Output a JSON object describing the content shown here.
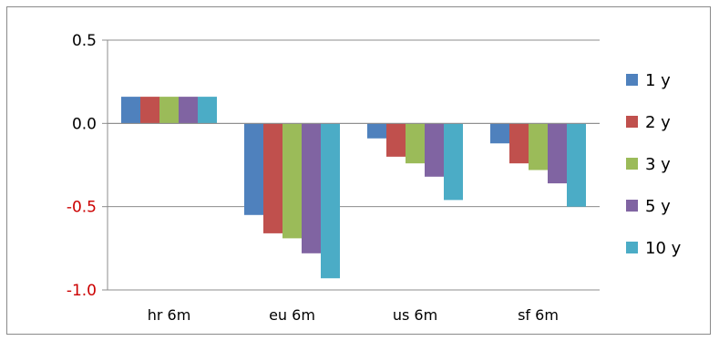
{
  "chart_data": {
    "type": "bar",
    "title": "",
    "xlabel": "",
    "ylabel": "",
    "categories": [
      "hr 6m",
      "eu 6m",
      "us 6m",
      "sf 6m"
    ],
    "ylim": [
      -1.0,
      0.5
    ],
    "yticks": [
      {
        "value": 0.5,
        "label": "0.5",
        "color": "#000000"
      },
      {
        "value": 0.0,
        "label": "0.0",
        "color": "#000000"
      },
      {
        "value": -0.5,
        "label": "-0.5",
        "color": "#cc0000"
      },
      {
        "value": -1.0,
        "label": "-1.0",
        "color": "#cc0000"
      }
    ],
    "grid": true,
    "legend_position": "right",
    "series": [
      {
        "name": "1 y",
        "color": "#4f81bd",
        "values": [
          0.16,
          -0.55,
          -0.09,
          -0.12
        ]
      },
      {
        "name": "2 y",
        "color": "#c0504d",
        "values": [
          0.16,
          -0.66,
          -0.2,
          -0.24
        ]
      },
      {
        "name": "3 y",
        "color": "#9bbb59",
        "values": [
          0.16,
          -0.69,
          -0.24,
          -0.28
        ]
      },
      {
        "name": "5 y",
        "color": "#8064a2",
        "values": [
          0.16,
          -0.78,
          -0.32,
          -0.36
        ]
      },
      {
        "name": "10 y",
        "color": "#4bacc6",
        "values": [
          0.16,
          -0.93,
          -0.46,
          -0.5
        ]
      }
    ]
  }
}
